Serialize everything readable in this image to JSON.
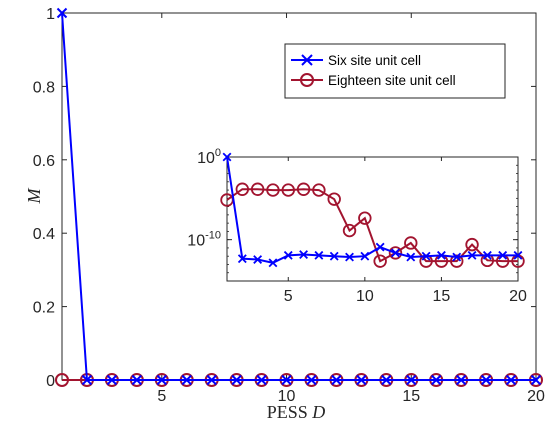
{
  "chart_data": [
    {
      "type": "line",
      "xlabel": "PESS ",
      "xlabel_var": "D",
      "ylabel": "M",
      "xlim": [
        1,
        20
      ],
      "ylim": [
        0,
        1
      ],
      "xticks": [
        5,
        10,
        15,
        20
      ],
      "yticks": [
        0,
        0.2,
        0.4,
        0.6,
        0.8,
        1
      ],
      "ytick_labels": [
        "0",
        "0.2",
        "0.4",
        "0.6",
        "0.8",
        "1"
      ],
      "legend": "top-right",
      "series": [
        {
          "name": "Six site unit cell",
          "color": "#0000ff",
          "marker": "x",
          "x": [
            1,
            2,
            3,
            4,
            5,
            6,
            7,
            8,
            9,
            10,
            11,
            12,
            13,
            14,
            15,
            16,
            17,
            18,
            19,
            20
          ],
          "values": [
            1,
            0,
            0,
            0,
            0,
            0,
            0,
            0,
            0,
            0,
            0,
            0,
            0,
            0,
            0,
            0,
            0,
            0,
            0,
            0
          ]
        },
        {
          "name": "Eighteen site unit cell",
          "color": "#a2142f",
          "marker": "o",
          "x": [
            1,
            2,
            3,
            4,
            5,
            6,
            7,
            8,
            9,
            10,
            11,
            12,
            13,
            14,
            15,
            16,
            17,
            18,
            19,
            20
          ],
          "values": [
            0,
            0,
            0,
            0,
            0,
            0,
            0,
            0,
            0,
            0,
            0,
            0,
            0,
            0,
            0,
            0,
            0,
            0,
            0,
            0
          ]
        }
      ]
    },
    {
      "type": "line",
      "yscale": "log",
      "xlim": [
        1,
        20
      ],
      "ylim_log10": [
        -15,
        0
      ],
      "xticks": [
        5,
        10,
        15,
        20
      ],
      "ytick_exponents": [
        0,
        -10
      ],
      "ytick_base": "10",
      "series": [
        {
          "color": "#0000ff",
          "marker": "x",
          "x": [
            1,
            2,
            3,
            4,
            5,
            6,
            7,
            8,
            9,
            10,
            11,
            12,
            13,
            14,
            15,
            16,
            17,
            18,
            19,
            20
          ],
          "log10_values": [
            0,
            -12.3,
            -12.4,
            -12.8,
            -11.9,
            -11.8,
            -11.9,
            -12.0,
            -12.1,
            -12.0,
            -10.9,
            -11.6,
            -12.1,
            -12.0,
            -11.9,
            -12.1,
            -11.9,
            -11.9,
            -11.9,
            -11.9
          ]
        },
        {
          "color": "#a2142f",
          "marker": "o",
          "x": [
            1,
            2,
            3,
            4,
            5,
            6,
            7,
            8,
            9,
            10,
            11,
            12,
            13,
            14,
            15,
            16,
            17,
            18,
            19,
            20
          ],
          "log10_values": [
            -5.2,
            -3.9,
            -3.9,
            -4.0,
            -4.0,
            -3.9,
            -4.0,
            -5.1,
            -8.9,
            -7.4,
            -12.6,
            -11.6,
            -10.4,
            -12.6,
            -12.6,
            -12.6,
            -10.6,
            -12.5,
            -12.6,
            -12.6
          ]
        }
      ]
    }
  ]
}
